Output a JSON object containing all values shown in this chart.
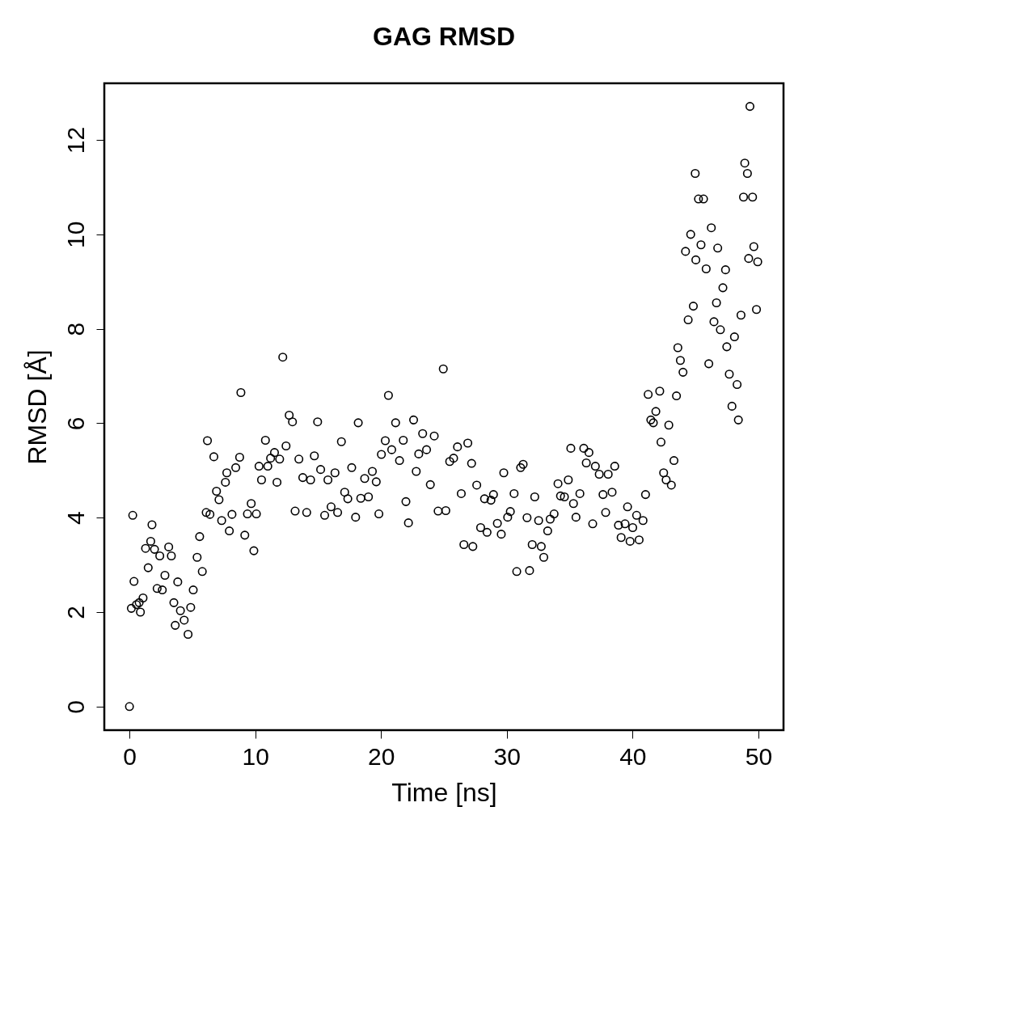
{
  "chart_data": {
    "type": "scatter",
    "title": "GAG RMSD",
    "xlabel": "Time [ns]",
    "ylabel": "RMSD [Å]",
    "xlim": [
      -2,
      52
    ],
    "ylim": [
      -0.5,
      13.2
    ],
    "xticks": [
      0,
      10,
      20,
      30,
      40,
      50
    ],
    "yticks": [
      0,
      2,
      4,
      6,
      8,
      10,
      12
    ],
    "grid": false,
    "marker": "circle",
    "series": [
      {
        "color": "#000000",
        "x": [
          0,
          0.15,
          0.26,
          0.36,
          0.56,
          0.77,
          0.87,
          1.08,
          1.28,
          1.49,
          1.69,
          1.79,
          1.99,
          2.2,
          2.41,
          2.61,
          2.82,
          3.12,
          3.33,
          3.53,
          3.64,
          3.84,
          4.05,
          4.35,
          4.66,
          4.87,
          5.07,
          5.38,
          5.58,
          5.79,
          6.1,
          6.2,
          6.4,
          6.71,
          6.92,
          7.12,
          7.33,
          7.63,
          7.74,
          7.94,
          8.15,
          8.45,
          8.76,
          8.86,
          9.17,
          9.38,
          9.68,
          9.89,
          10.09,
          10.3,
          10.5,
          10.81,
          11.0,
          11.22,
          11.53,
          11.73,
          11.94,
          12.19,
          12.45,
          12.7,
          12.96,
          13.17,
          13.47,
          13.78,
          14.09,
          14.4,
          14.7,
          14.96,
          15.2,
          15.52,
          15.78,
          16.03,
          16.34,
          16.55,
          16.85,
          17.11,
          17.36,
          17.67,
          17.98,
          18.19,
          18.39,
          18.7,
          19.0,
          19.31,
          19.62,
          19.83,
          20.03,
          20.34,
          20.59,
          20.85,
          21.16,
          21.47,
          21.77,
          21.98,
          22.18,
          22.59,
          22.8,
          23.0,
          23.31,
          23.62,
          23.92,
          24.23,
          24.54,
          24.95,
          25.15,
          25.46,
          25.77,
          26.08,
          26.38,
          26.59,
          26.9,
          27.2,
          27.3,
          27.61,
          27.92,
          28.23,
          28.43,
          28.74,
          28.94,
          29.25,
          29.56,
          29.76,
          30.07,
          30.28,
          30.58,
          30.79,
          31.1,
          31.3,
          31.61,
          31.81,
          32.02,
          32.22,
          32.53,
          32.74,
          32.94,
          33.25,
          33.45,
          33.76,
          34.07,
          34.27,
          34.58,
          34.89,
          35.09,
          35.3,
          35.5,
          35.81,
          36.12,
          36.32,
          36.53,
          36.83,
          37.04,
          37.35,
          37.65,
          37.86,
          38.06,
          38.37,
          38.58,
          38.88,
          39.09,
          39.4,
          39.6,
          39.8,
          40.01,
          40.32,
          40.52,
          40.83,
          41.03,
          41.24,
          41.45,
          41.65,
          41.85,
          42.16,
          42.26,
          42.47,
          42.67,
          42.88,
          43.08,
          43.29,
          43.49,
          43.6,
          43.8,
          44.01,
          44.21,
          44.42,
          44.62,
          44.83,
          44.98,
          45.03,
          45.24,
          45.44,
          45.64,
          45.85,
          46.06,
          46.26,
          46.47,
          46.67,
          46.77,
          46.98,
          47.18,
          47.39,
          47.49,
          47.69,
          47.9,
          48.1,
          48.31,
          48.41,
          48.62,
          48.82,
          48.92,
          49.13,
          49.23,
          49.33,
          49.54,
          49.64,
          49.85,
          49.95
        ],
        "values": [
          0,
          2.08,
          4.05,
          2.65,
          2.16,
          2.2,
          2.0,
          2.3,
          3.35,
          2.94,
          3.5,
          3.85,
          3.33,
          2.5,
          3.19,
          2.47,
          2.78,
          3.38,
          3.19,
          2.2,
          1.72,
          2.64,
          2.03,
          1.83,
          1.53,
          2.1,
          2.47,
          3.16,
          3.6,
          2.86,
          4.11,
          5.63,
          4.07,
          5.29,
          4.56,
          4.38,
          3.94,
          4.75,
          4.95,
          3.72,
          4.07,
          5.06,
          5.28,
          6.65,
          3.63,
          4.08,
          4.3,
          3.3,
          4.08,
          5.09,
          4.8,
          5.64,
          5.09,
          5.26,
          5.38,
          4.75,
          5.24,
          7.4,
          5.52,
          6.17,
          6.03,
          4.14,
          5.24,
          4.85,
          4.11,
          4.8,
          5.31,
          6.03,
          5.02,
          4.05,
          4.8,
          4.23,
          4.95,
          4.11,
          5.61,
          4.54,
          4.4,
          5.06,
          4.01,
          6.01,
          4.41,
          4.83,
          4.44,
          4.98,
          4.76,
          4.08,
          5.34,
          5.63,
          6.59,
          5.44,
          6.01,
          5.21,
          5.64,
          4.34,
          3.89,
          6.07,
          4.98,
          5.35,
          5.78,
          5.44,
          4.7,
          5.73,
          4.14,
          7.15,
          4.15,
          5.19,
          5.26,
          5.5,
          4.51,
          3.43,
          5.58,
          5.15,
          3.39,
          4.69,
          3.79,
          4.4,
          3.69,
          4.37,
          4.49,
          3.88,
          3.65,
          4.95,
          4.01,
          4.13,
          4.51,
          2.86,
          5.06,
          5.13,
          4.0,
          2.88,
          3.43,
          4.44,
          3.94,
          3.39,
          3.16,
          3.72,
          3.97,
          4.08,
          4.72,
          4.46,
          4.44,
          4.8,
          5.47,
          4.3,
          4.01,
          4.51,
          5.47,
          5.16,
          5.38,
          3.87,
          5.09,
          4.92,
          4.49,
          4.11,
          4.92,
          4.54,
          5.09,
          3.84,
          3.58,
          3.87,
          4.23,
          3.5,
          3.79,
          4.05,
          3.53,
          3.94,
          4.49,
          6.61,
          6.07,
          6.01,
          6.25,
          6.68,
          5.6,
          4.95,
          4.8,
          5.96,
          4.69,
          5.21,
          6.58,
          7.6,
          7.33,
          7.08,
          9.64,
          8.19,
          10.0,
          8.48,
          11.29,
          9.46,
          10.75,
          9.78,
          10.75,
          9.27,
          7.26,
          10.14,
          8.15,
          8.55,
          9.71,
          7.98,
          8.87,
          9.25,
          7.62,
          7.04,
          6.36,
          7.83,
          6.82,
          6.07,
          8.29,
          10.79,
          11.51,
          11.29,
          9.49,
          12.71,
          10.79,
          9.74,
          8.41,
          9.42
        ]
      }
    ]
  }
}
